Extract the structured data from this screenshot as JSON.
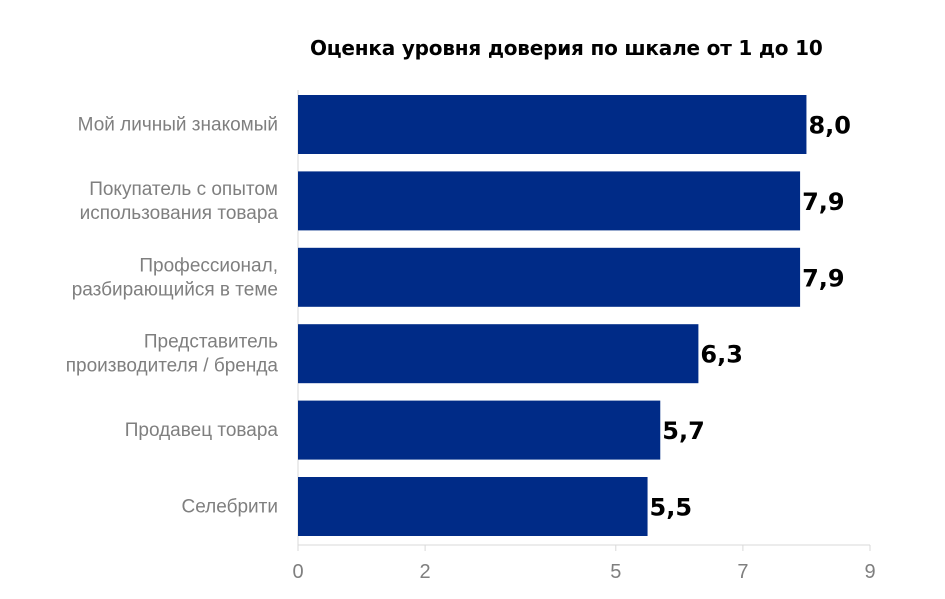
{
  "chart_data": {
    "type": "bar",
    "orientation": "horizontal",
    "title": "Оценка уровня доверия по шкале от 1 до 10",
    "categories": [
      [
        "Мой личный знакомый"
      ],
      [
        "Покупатель с опытом",
        "использования товара"
      ],
      [
        "Профессионал,",
        "разбирающийся в теме"
      ],
      [
        "Представитель",
        "производителя / бренда"
      ],
      [
        "Продавец товара"
      ],
      [
        "Селебрити"
      ]
    ],
    "values": [
      8.0,
      7.9,
      7.9,
      6.3,
      5.7,
      5.5
    ],
    "data_labels": [
      "8,0",
      "7,9",
      "7,9",
      "6,3",
      "5,7",
      "5,5"
    ],
    "xlim": [
      0,
      9
    ],
    "ticks": [
      0,
      2,
      5,
      7,
      9
    ],
    "tick_labels": [
      "0",
      "2",
      "5",
      "7",
      "9"
    ],
    "xlabel": "",
    "ylabel": "",
    "grid": false,
    "legend": "none",
    "bar_color": "#002b87"
  }
}
